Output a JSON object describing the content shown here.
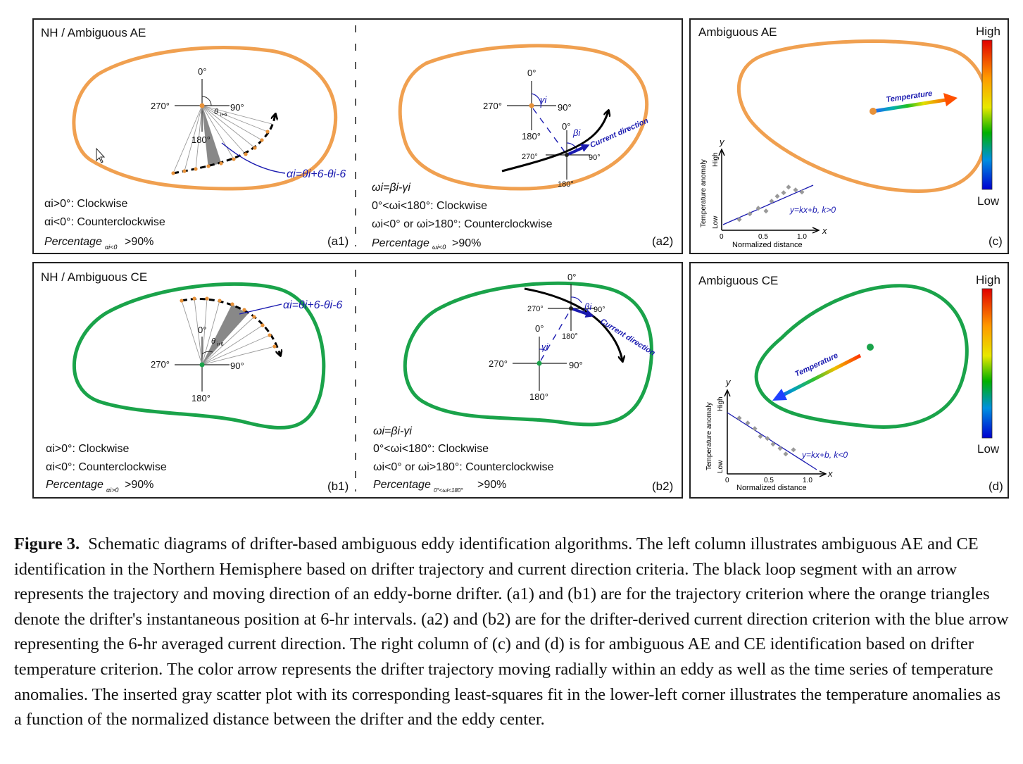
{
  "panel_a1": {
    "title": "NH / Ambiguous AE",
    "angles": {
      "top": "0°",
      "left": "270°",
      "right": "90°",
      "bottom": "180°",
      "theta": "θ",
      "theta_sub": "i+6"
    },
    "formula": "αi=θi+6-θi-6",
    "rule_cw": "αi>0°: Clockwise",
    "rule_ccw": "αi<0°: Counterclockwise",
    "percentage": "Percentage",
    "percentage_sub": "αi<0",
    "percentage_value": ">90%",
    "label": "(a1)"
  },
  "panel_a2": {
    "angles": {
      "top": "0°",
      "left": "270°",
      "right": "90°",
      "bottom": "180°",
      "top2": "0°",
      "left2": "270°",
      "right2": "90°",
      "bottom2": "180°",
      "gamma": "γi",
      "beta": "βi"
    },
    "current_label": "Current direction",
    "formula": "ωi=βi-γi",
    "rule_cw": "0°<ωi<180°: Clockwise",
    "rule_ccw": "ωi<0° or ωi>180°: Counterclockwise",
    "percentage": "Percentage",
    "percentage_sub": "ωi<0",
    "percentage_value": ">90%",
    "label": "(a2)"
  },
  "panel_b1": {
    "title": "NH / Ambiguous CE",
    "angles": {
      "top": "0°",
      "left": "270°",
      "right": "90°",
      "bottom": "180°",
      "theta": "θ",
      "theta_sub": "i+6"
    },
    "formula": "αi=θi+6-θi-6",
    "rule_cw": "αi>0°: Clockwise",
    "rule_ccw": "αi<0°: Counterclockwise",
    "percentage": "Percentage",
    "percentage_sub": "αi>0",
    "percentage_value": ">90%",
    "label": "(b1)"
  },
  "panel_b2": {
    "angles": {
      "top": "0°",
      "left": "270°",
      "right": "90°",
      "bottom": "180°",
      "top2": "0°",
      "left2": "270°",
      "right2": "90°",
      "bottom2": "180°",
      "gamma": "γi",
      "beta": "βi"
    },
    "current_label": "Current direction",
    "formula": "ωi=βi-γi",
    "rule_cw": "0°<ωi<180°: Clockwise",
    "rule_ccw": "ωi<0° or ωi>180°: Counterclockwise",
    "percentage": "Percentage",
    "percentage_sub": "0°<ωi<180°",
    "percentage_value": ">90%",
    "label": "(b2)"
  },
  "panel_c": {
    "title": "Ambiguous AE",
    "colorbar_high": "High",
    "colorbar_low": "Low",
    "arrow_label": "Temperature",
    "inset": {
      "y": "y",
      "x": "x",
      "ylabel": "Temperature anomaly",
      "yhigh": "High",
      "ylow": "Low",
      "xlabel": "Normalized distance",
      "tick0": "0",
      "tick05": "0.5",
      "tick10": "1.0",
      "fit": "y=kx+b, k>0"
    },
    "label": "(c)"
  },
  "panel_d": {
    "title": "Ambiguous CE",
    "colorbar_high": "High",
    "colorbar_low": "Low",
    "arrow_label": "Temperature",
    "inset": {
      "y": "y",
      "x": "x",
      "ylabel": "Temperature anomaly",
      "yhigh": "High",
      "ylow": "Low",
      "xlabel": "Normalized distance",
      "tick0": "0",
      "tick05": "0.5",
      "tick10": "1.0",
      "fit": "y=kx+b, k<0"
    },
    "label": "(d)"
  },
  "colors": {
    "ae": "#f0a050",
    "ce": "#1aa34a",
    "arrow": "#1a1ab0",
    "drifter_point": "#e8923a"
  },
  "caption": {
    "label": "Figure 3.",
    "text": "Schematic diagrams of drifter-based ambiguous eddy identification algorithms. The left column illustrates ambiguous AE and CE identification in the Northern Hemisphere based on drifter trajectory and current direction criteria. The black loop segment with an arrow represents the trajectory and moving direction of an eddy-borne drifter. (a1) and (b1) are for the trajectory criterion where the orange triangles denote the drifter's instantaneous position at 6-hr intervals. (a2) and (b2) are for the drifter-derived current direction criterion with the blue arrow representing the 6-hr averaged current direction. The right column of (c) and (d) is for ambiguous AE and CE identification based on drifter temperature criterion. The color arrow represents the drifter trajectory moving radially within an eddy as well as the time series of temperature anomalies. The inserted gray scatter plot with its corresponding least-squares fit in the lower-left corner illustrates the temperature anomalies as a function of the normalized distance between the drifter and the eddy center."
  }
}
